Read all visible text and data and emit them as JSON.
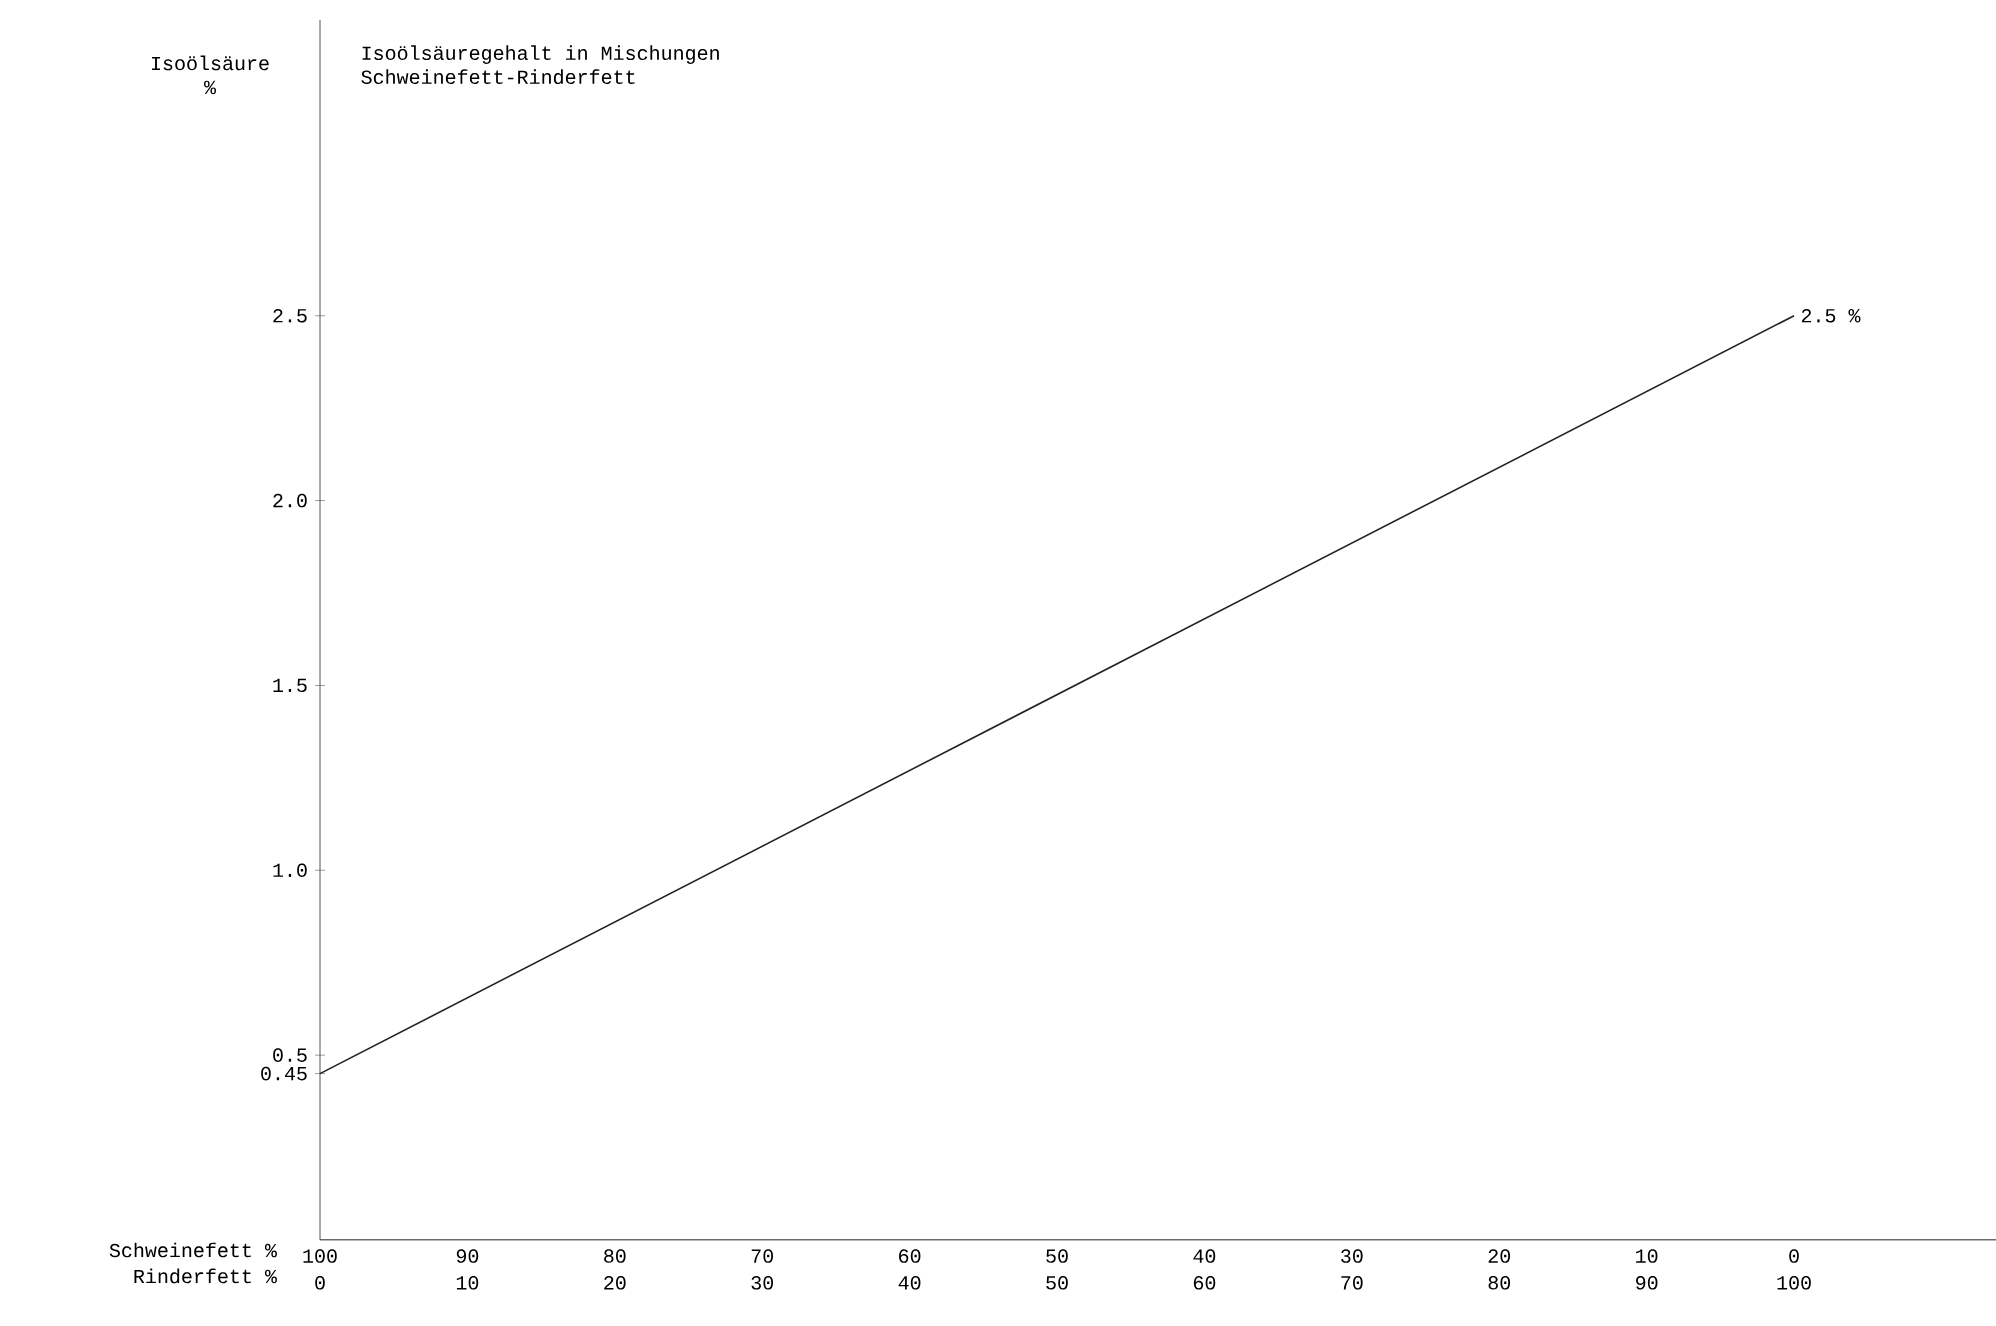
{
  "chart_data": {
    "type": "line",
    "title": "Isoölsäuregehalt in Mischungen",
    "subtitle": "Schweinefett-Rinderfett",
    "ylabel": "Isoölsäure %",
    "xlabel": "Rinderfett %",
    "x2label": "Schweinefett %",
    "x": [
      0,
      100
    ],
    "series": [
      {
        "color": "#222222",
        "values": [
          0.45,
          2.5
        ]
      }
    ],
    "xlim": [
      0,
      113.7
    ],
    "ylim": [
      0,
      3.3
    ],
    "xticks": [
      0,
      10,
      20,
      30,
      40,
      50,
      60,
      70,
      80,
      90,
      100
    ],
    "x2lim": [
      100,
      -13.7
    ],
    "x2ticks": [
      100,
      90,
      80,
      70,
      60,
      50,
      40,
      30,
      20,
      10,
      0
    ],
    "yticks": [
      {
        "value": 0.45,
        "label": "0.45"
      },
      0.5,
      {
        "value": 1.0,
        "label": "1.0"
      },
      1.5,
      {
        "value": 2.0,
        "label": "2.0"
      },
      2.5
    ],
    "annotations": [
      {
        "text": "2.5 %",
        "x": 100,
        "y": 2.5
      }
    ],
    "grid": false,
    "marker": "none",
    "line_style": "solid"
  }
}
